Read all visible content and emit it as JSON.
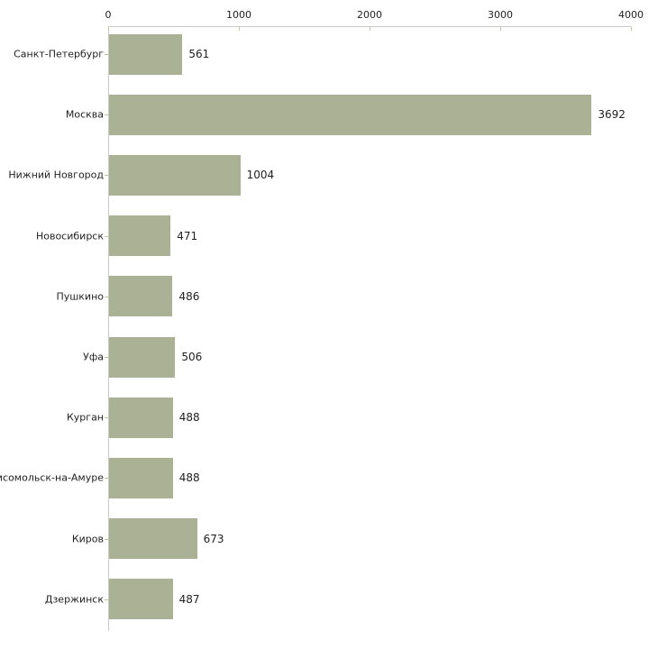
{
  "chart_data": {
    "type": "bar",
    "orientation": "horizontal",
    "title": "",
    "categories": [
      "Санкт-Петербург",
      "Москва",
      "Нижний Новгород",
      "Новосибирск",
      "Пушкино",
      "Уфа",
      "Курган",
      "Комсомольск-на-Амуре",
      "Киров",
      "Дзержинск"
    ],
    "values": [
      561,
      3692,
      1004,
      471,
      486,
      506,
      488,
      488,
      673,
      487
    ],
    "value_labels": [
      "561",
      "3692",
      "1004",
      "471",
      "486",
      "506",
      "488",
      "488",
      "673",
      "487"
    ],
    "xlim": [
      0,
      4000
    ],
    "x_ticks": [
      "0",
      "1000",
      "2000",
      "3000",
      "4000"
    ],
    "x_tick_values": [
      0,
      1000,
      2000,
      3000,
      4000
    ],
    "axis_position": "top",
    "grid": false,
    "legend": null,
    "colors": {
      "bar_fill": "#aab194",
      "axis_line": "#c9c9c9",
      "tick_mark": "#c2c299",
      "text": "#1f1f1f",
      "background": "#ffffff"
    }
  }
}
